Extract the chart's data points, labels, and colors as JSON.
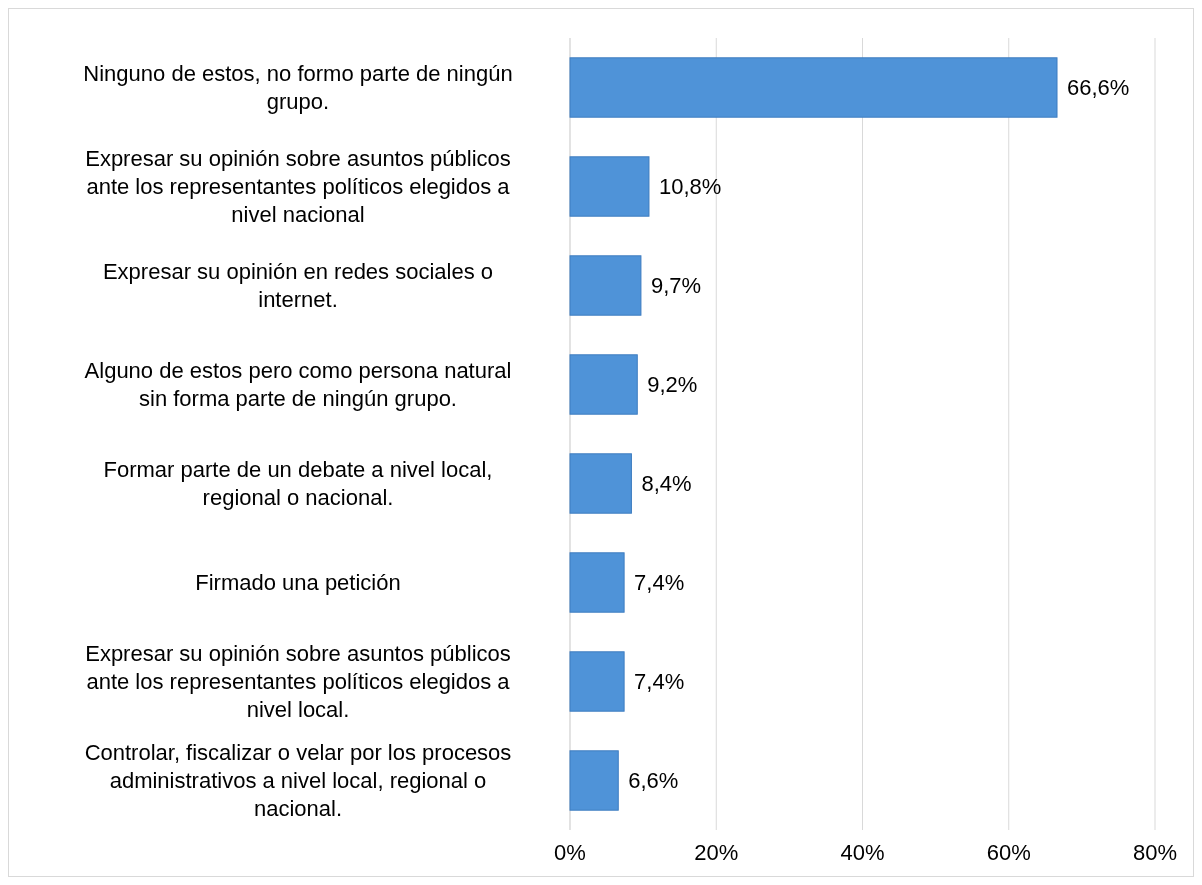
{
  "chart_data": {
    "type": "bar",
    "orientation": "horizontal",
    "categories": [
      "Ninguno de estos, no formo parte de ningún grupo.",
      "Expresar su opinión sobre asuntos públicos ante los representantes políticos elegidos a nivel nacional",
      "Expresar su opinión en redes sociales o internet.",
      "Alguno de estos pero como persona natural sin forma parte de ningún grupo.",
      "Formar parte de un debate a nivel local, regional o nacional.",
      "Firmado una petición",
      "Expresar su opinión sobre asuntos públicos ante los representantes políticos elegidos a nivel local.",
      "Controlar, fiscalizar o velar por los procesos administrativos a nivel local, regional o nacional."
    ],
    "values": [
      66.6,
      10.8,
      9.7,
      9.2,
      8.4,
      7.4,
      7.4,
      6.6
    ],
    "value_labels": [
      "66,6%",
      "10,8%",
      "9,7%",
      "9,2%",
      "8,4%",
      "7,4%",
      "7,4%",
      "6,6%"
    ],
    "color": "#4f93d8",
    "xlim": [
      0,
      80
    ],
    "xticks": [
      {
        "value": 0,
        "label": "0%"
      },
      {
        "value": 20,
        "label": "20%"
      },
      {
        "value": 40,
        "label": "40%"
      },
      {
        "value": 60,
        "label": "60%"
      },
      {
        "value": 80,
        "label": "80%"
      }
    ],
    "grid": "x"
  }
}
